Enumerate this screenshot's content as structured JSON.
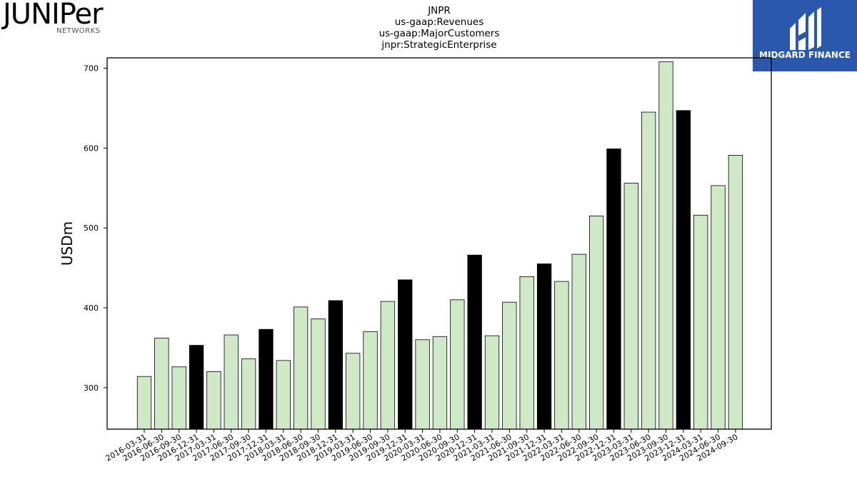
{
  "logos": {
    "left_word": "JUNIPer",
    "left_sub": "NETWORKS",
    "right_brand": "MIDGARD FINANCE"
  },
  "colors": {
    "bar_fill": "#cfe9c6",
    "highlight_fill": "#000000",
    "bar_stroke": "#000000",
    "brand_blue": "#2a58ad"
  },
  "chart_data": {
    "type": "bar",
    "title_lines": [
      "JNPR",
      "us-gaap:Revenues",
      "us-gaap:MajorCustomers",
      "jnpr:StrategicEnterprise"
    ],
    "xlabel": "",
    "ylabel": "USDm",
    "ylim": [
      248,
      713
    ],
    "yticks": [
      300,
      400,
      500,
      600,
      700
    ],
    "grid": false,
    "categories": [
      "2016-03-31",
      "2016-06-30",
      "2016-09-30",
      "2016-12-31",
      "2017-03-31",
      "2017-06-30",
      "2017-09-30",
      "2017-12-31",
      "2018-03-31",
      "2018-06-30",
      "2018-09-30",
      "2018-12-31",
      "2019-03-31",
      "2019-06-30",
      "2019-09-30",
      "2019-12-31",
      "2020-03-31",
      "2020-06-30",
      "2020-09-30",
      "2020-12-31",
      "2021-03-31",
      "2021-06-30",
      "2021-09-30",
      "2021-12-31",
      "2022-03-31",
      "2022-06-30",
      "2022-09-30",
      "2022-12-31",
      "2023-03-31",
      "2023-06-30",
      "2023-09-30",
      "2023-12-31",
      "2024-03-31",
      "2024-06-30",
      "2024-09-30"
    ],
    "values": [
      314,
      362,
      326,
      353,
      320,
      366,
      336,
      373,
      334,
      401,
      386,
      409,
      343,
      370,
      408,
      435,
      360,
      364,
      410,
      466,
      365,
      407,
      439,
      455,
      433,
      467,
      515,
      599,
      556,
      645,
      708,
      647,
      516,
      553,
      591
    ],
    "highlighted": [
      false,
      false,
      false,
      true,
      false,
      false,
      false,
      true,
      false,
      false,
      false,
      true,
      false,
      false,
      false,
      true,
      false,
      false,
      false,
      true,
      false,
      false,
      false,
      true,
      false,
      false,
      false,
      true,
      false,
      false,
      false,
      true,
      false,
      false,
      false
    ]
  }
}
